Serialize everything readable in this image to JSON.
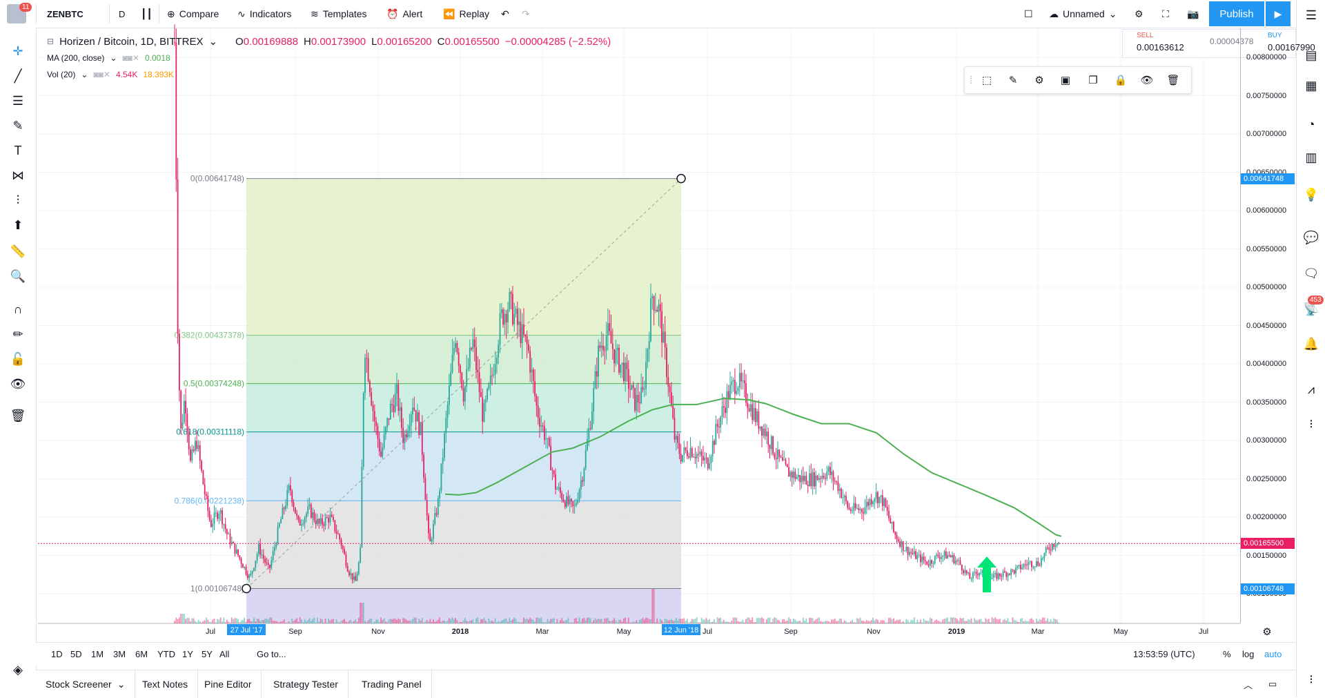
{
  "topbar": {
    "notifications": "11",
    "symbol": "ZENBTC",
    "interval": "D",
    "compare": "Compare",
    "indicators": "Indicators",
    "templates": "Templates",
    "alert": "Alert",
    "replay": "Replay",
    "layout_name": "Unnamed",
    "publish": "Publish"
  },
  "legend": {
    "title": "Horizen / Bitcoin, 1D, BITTREX",
    "ohlc": {
      "o_label": "O",
      "o": "0.00169888",
      "h_label": "H",
      "h": "0.00173900",
      "l_label": "L",
      "l": "0.00165200",
      "c_label": "C",
      "c": "0.00165500",
      "change": "−0.00004285 (−2.52%)"
    },
    "ma": {
      "label": "MA (200, close)",
      "value": "0.0018"
    },
    "vol": {
      "label": "Vol (20)",
      "v1": "4.54K",
      "v2": "18.393K"
    }
  },
  "trade": {
    "sell_label": "SELL",
    "sell": "0.00163612",
    "spread": "0.00004378",
    "buy_label": "BUY",
    "buy": "0.00167990"
  },
  "price_axis": [
    "0.00800000",
    "0.00750000",
    "0.00700000",
    "0.00650000",
    "0.00600000",
    "0.00550000",
    "0.00500000",
    "0.00450000",
    "0.00400000",
    "0.00350000",
    "0.00300000",
    "0.00250000",
    "0.00200000",
    "0.00150000",
    "0.00100000"
  ],
  "price_tags": {
    "high": "0.00641748",
    "last": "0.00165500",
    "low": "0.00106748"
  },
  "time_axis": [
    "Jul",
    "Sep",
    "Nov",
    "2018",
    "Mar",
    "May",
    "Jul",
    "Sep",
    "Nov",
    "2019",
    "Mar",
    "May",
    "Jul"
  ],
  "time_tags": {
    "start": "27 Jul '17",
    "end": "12 Jun '18"
  },
  "fib": [
    {
      "label": "0(0.00641748)",
      "color": "#787b86"
    },
    {
      "label": "0.382(0.00437378)",
      "color": "#81c784"
    },
    {
      "label": "0.5(0.00374248)",
      "color": "#4caf50"
    },
    {
      "label": "0.618(0.00311118)",
      "color": "#009688"
    },
    {
      "label": "0.786(0.00221238)",
      "color": "#64b5f6"
    },
    {
      "label": "1(0.00106748)",
      "color": "#787b86"
    }
  ],
  "timeframes": [
    "1D",
    "5D",
    "1M",
    "3M",
    "6M",
    "YTD",
    "1Y",
    "5Y",
    "All"
  ],
  "goto": "Go to...",
  "clock": "13:53:59 (UTC)",
  "scale_opts": [
    "%",
    "log",
    "auto"
  ],
  "bottom_tabs": [
    "Stock Screener",
    "Text Notes",
    "Pine Editor",
    "Strategy Tester",
    "Trading Panel"
  ],
  "right_badge": "453",
  "colors": {
    "accent": "#2196f3",
    "candle_up": "#26a69a",
    "candle_down": "#e91e63",
    "ma": "#4caf50",
    "last_price": "#e91e63"
  }
}
